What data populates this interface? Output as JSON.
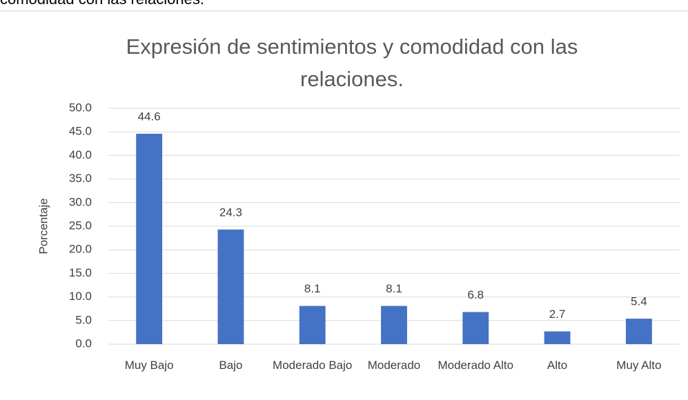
{
  "header": {
    "text": "comodidad con las relaciones."
  },
  "chart_data": {
    "type": "bar",
    "title": "Expresión de sentimientos y comodidad con las relaciones.",
    "ylabel": "Porcentaje",
    "categories": [
      "Muy Bajo",
      "Bajo",
      "Moderado Bajo",
      "Moderado",
      "Moderado Alto",
      "Alto",
      "Muy Alto"
    ],
    "values": [
      44.6,
      24.3,
      8.1,
      8.1,
      6.8,
      2.7,
      5.4
    ],
    "color": "#4472c4",
    "ylim": [
      0,
      50
    ],
    "yticks": [
      {
        "value": 0,
        "label": "0.0"
      },
      {
        "value": 5,
        "label": "5.0"
      },
      {
        "value": 10,
        "label": "10.0"
      },
      {
        "value": 15,
        "label": "15.0"
      },
      {
        "value": 20,
        "label": "20.0"
      },
      {
        "value": 25,
        "label": "25.0"
      },
      {
        "value": 30,
        "label": "30.0"
      },
      {
        "value": 35,
        "label": "35.0"
      },
      {
        "value": 40,
        "label": "40.0"
      },
      {
        "value": 45,
        "label": "45.0"
      },
      {
        "value": 50,
        "label": "50.0"
      }
    ],
    "grid": true
  }
}
